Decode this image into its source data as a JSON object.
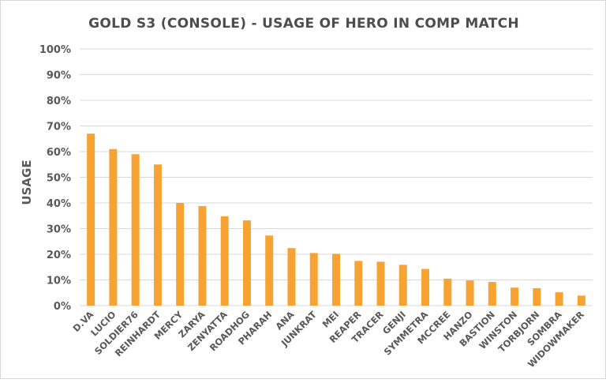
{
  "chart_data": {
    "type": "bar",
    "title": "GOLD S3 (CONSOLE) - USAGE OF HERO IN COMP MATCH",
    "xlabel": "",
    "ylabel": "USAGE",
    "ylim": [
      0,
      100
    ],
    "yticks": [
      "0%",
      "10%",
      "20%",
      "30%",
      "40%",
      "50%",
      "60%",
      "70%",
      "80%",
      "90%",
      "100%"
    ],
    "grid": true,
    "bar_color": "#f7a333",
    "categories": [
      "D.VA",
      "LUCIO",
      "SOLDIER76",
      "REINHARDT",
      "MERCY",
      "ZARYA",
      "ZENYATTA",
      "ROADHOG",
      "PHARAH",
      "ANA",
      "JUNKRAT",
      "MEI",
      "REAPER",
      "TRACER",
      "GENJI",
      "SYMMETRA",
      "MCCREE",
      "HANZO",
      "BASTION",
      "WINSTON",
      "TORBJORN",
      "SOMBRA",
      "WIDOWMAKER"
    ],
    "values": [
      67,
      61,
      59,
      55,
      40,
      38.8,
      34.8,
      33.2,
      27.3,
      22.4,
      20.5,
      20.2,
      17.4,
      17.1,
      15.9,
      14.3,
      10.5,
      9.8,
      9.2,
      7.0,
      6.8,
      5.2,
      3.9
    ]
  }
}
